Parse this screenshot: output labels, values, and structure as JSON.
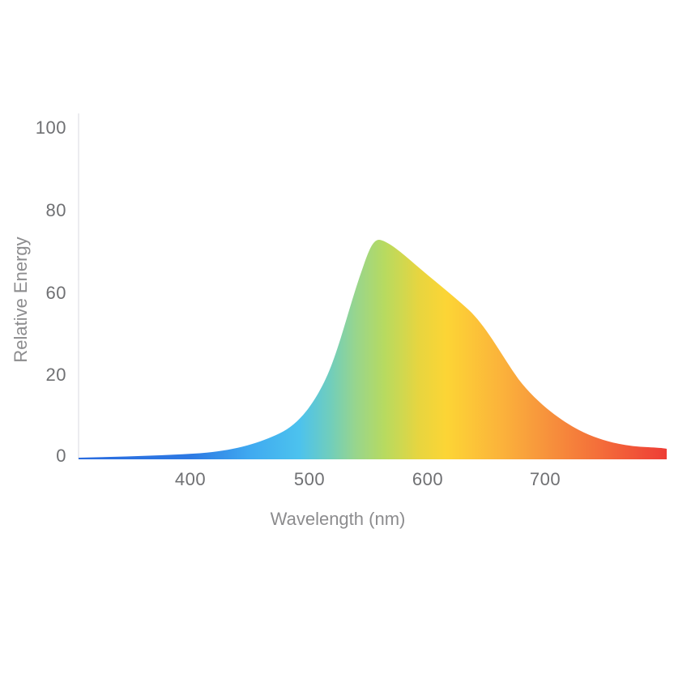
{
  "page": {
    "background_color": "#ffffff"
  },
  "chart_data": {
    "type": "area",
    "title": "",
    "xlabel": "Wavelength (nm)",
    "ylabel": "Relative Energy",
    "x_tick_labels": [
      "400",
      "500",
      "600",
      "700"
    ],
    "y_tick_labels": [
      "100",
      "80",
      "60",
      "20",
      "0"
    ],
    "xlim": [
      305,
      805
    ],
    "ylim": [
      0,
      100
    ],
    "grid": false,
    "legend": false,
    "axis_style": "single faint vertical line at left; no bottom axis line; no gridlines",
    "series": [
      {
        "name": "Relative Energy",
        "x": [
          305,
          350,
          400,
          430,
          450,
          470,
          490,
          505,
          515,
          530,
          545,
          555,
          565,
          580,
          590,
          605,
          620,
          635,
          655,
          675,
          695,
          715,
          735,
          760,
          780,
          800
        ],
        "values": [
          0,
          0.5,
          1.5,
          4,
          7,
          11,
          17,
          25,
          33,
          50,
          65,
          72.5,
          72,
          70,
          67,
          63,
          58,
          52,
          36,
          20,
          13.5,
          9,
          6,
          4,
          3,
          2.5
        ]
      }
    ],
    "peak": {
      "wavelength_nm": 555,
      "relative_energy": 72.5
    },
    "fill_style": "horizontal spectral gradient (blue to red) filling area under curve",
    "gradient_stops": [
      {
        "pos": 0.0,
        "color": "#2b6cdf"
      },
      {
        "pos": 0.19,
        "color": "#2d79e3"
      },
      {
        "pos": 0.29,
        "color": "#3fa9f0"
      },
      {
        "pos": 0.375,
        "color": "#4cc2ee"
      },
      {
        "pos": 0.43,
        "color": "#72ceba"
      },
      {
        "pos": 0.47,
        "color": "#97d58e"
      },
      {
        "pos": 0.52,
        "color": "#b7da60"
      },
      {
        "pos": 0.58,
        "color": "#e8d53f"
      },
      {
        "pos": 0.625,
        "color": "#fcd535"
      },
      {
        "pos": 0.72,
        "color": "#fbb23b"
      },
      {
        "pos": 0.79,
        "color": "#f7953c"
      },
      {
        "pos": 0.88,
        "color": "#f4703a"
      },
      {
        "pos": 1.0,
        "color": "#ee3d36"
      }
    ],
    "colors": {
      "axis_line": "#ececf0",
      "tick_text": "#6f7073",
      "axis_title_text": "#8c8c8e"
    }
  }
}
